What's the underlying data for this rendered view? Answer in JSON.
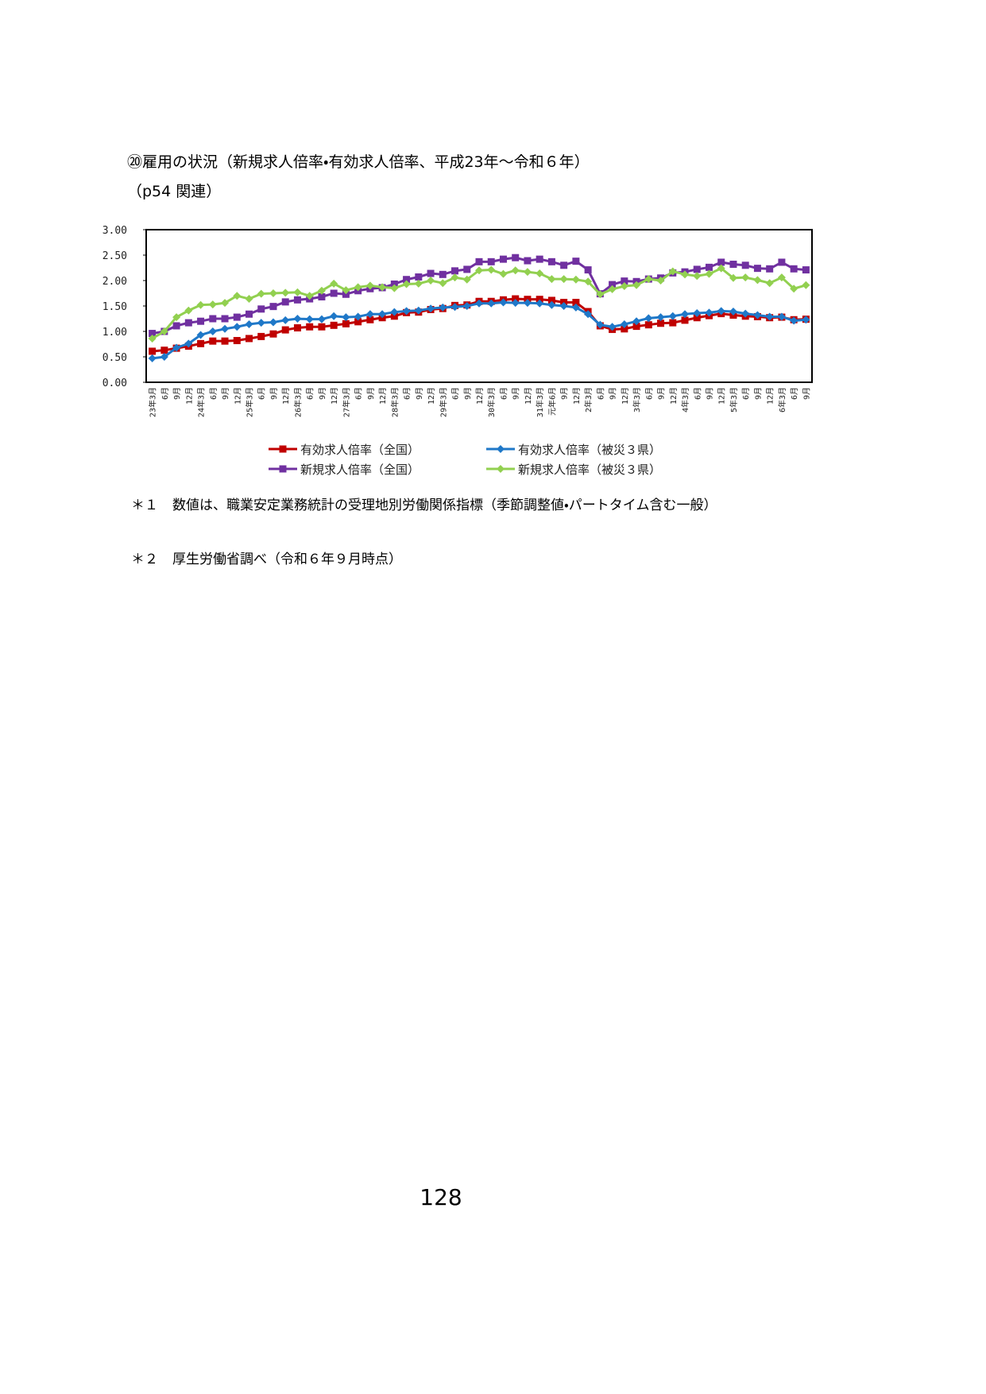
{
  "header": {
    "title": "⑳雇用の状況（新規求人倍率・有効求人倍率、平成23年〜令和６年）",
    "subtitle": "（p54 関連）"
  },
  "chart_data": {
    "type": "line",
    "categories": [
      "23年3月",
      "6月",
      "9月",
      "12月",
      "24年3月",
      "6月",
      "9月",
      "12月",
      "25年3月",
      "6月",
      "9月",
      "12月",
      "26年3月",
      "6月",
      "9月",
      "12月",
      "27年3月",
      "6月",
      "9月",
      "12月",
      "28年3月",
      "6月",
      "9月",
      "12月",
      "29年3月",
      "6月",
      "9月",
      "12月",
      "30年3月",
      "6月",
      "9月",
      "12月",
      "31年3月",
      "元年6月",
      "9月",
      "12月",
      "2年3月",
      "6月",
      "9月",
      "12月",
      "3年3月",
      "6月",
      "9月",
      "12月",
      "4年3月",
      "6月",
      "9月",
      "12月",
      "5年3月",
      "6月",
      "9月",
      "12月",
      "6年3月",
      "6月",
      "9月"
    ],
    "ylim": [
      0,
      3
    ],
    "yticks": [
      {
        "value": 0,
        "label": "0.00"
      },
      {
        "value": 0.5,
        "label": "0.50"
      },
      {
        "value": 1,
        "label": "1.00"
      },
      {
        "value": 1.5,
        "label": "1.50"
      },
      {
        "value": 2,
        "label": "2.00"
      },
      {
        "value": 2.5,
        "label": "2.50"
      },
      {
        "value": 3,
        "label": "3.00"
      }
    ],
    "grid": false,
    "series": [
      {
        "name": "有効求人倍率（全国）",
        "color": "#c00000",
        "marker": "square",
        "values": [
          0.61,
          0.63,
          0.67,
          0.71,
          0.76,
          0.81,
          0.81,
          0.82,
          0.86,
          0.9,
          0.95,
          1.03,
          1.07,
          1.09,
          1.09,
          1.12,
          1.15,
          1.19,
          1.23,
          1.27,
          1.3,
          1.37,
          1.38,
          1.43,
          1.45,
          1.51,
          1.52,
          1.59,
          1.59,
          1.62,
          1.64,
          1.63,
          1.63,
          1.61,
          1.57,
          1.57,
          1.39,
          1.11,
          1.04,
          1.05,
          1.1,
          1.13,
          1.16,
          1.17,
          1.22,
          1.27,
          1.31,
          1.35,
          1.32,
          1.3,
          1.29,
          1.27,
          1.28,
          1.23,
          1.24
        ]
      },
      {
        "name": "有効求人倍率（被災３県）",
        "color": "#1f78c8",
        "marker": "diamond",
        "values": [
          0.47,
          0.5,
          0.68,
          0.76,
          0.93,
          1.0,
          1.05,
          1.09,
          1.14,
          1.17,
          1.18,
          1.22,
          1.25,
          1.24,
          1.24,
          1.3,
          1.28,
          1.29,
          1.34,
          1.34,
          1.38,
          1.4,
          1.41,
          1.45,
          1.47,
          1.48,
          1.5,
          1.55,
          1.55,
          1.57,
          1.56,
          1.56,
          1.55,
          1.52,
          1.5,
          1.47,
          1.34,
          1.13,
          1.09,
          1.14,
          1.2,
          1.26,
          1.28,
          1.3,
          1.34,
          1.36,
          1.37,
          1.4,
          1.39,
          1.35,
          1.32,
          1.29,
          1.29,
          1.21,
          1.23
        ]
      },
      {
        "name": "新規求人倍率（全国）",
        "color": "#7030a0",
        "marker": "square",
        "values": [
          0.96,
          1.0,
          1.11,
          1.17,
          1.2,
          1.25,
          1.25,
          1.28,
          1.34,
          1.44,
          1.49,
          1.58,
          1.62,
          1.64,
          1.68,
          1.75,
          1.73,
          1.8,
          1.84,
          1.86,
          1.93,
          2.02,
          2.07,
          2.14,
          2.12,
          2.19,
          2.22,
          2.37,
          2.37,
          2.42,
          2.45,
          2.39,
          2.42,
          2.37,
          2.3,
          2.38,
          2.21,
          1.74,
          1.92,
          1.99,
          1.98,
          2.03,
          2.05,
          2.15,
          2.17,
          2.22,
          2.26,
          2.36,
          2.32,
          2.3,
          2.24,
          2.23,
          2.36,
          2.23,
          2.21
        ]
      },
      {
        "name": "新規求人倍率（被災３県）",
        "color": "#92d050",
        "marker": "diamond",
        "values": [
          0.86,
          1.0,
          1.28,
          1.41,
          1.52,
          1.53,
          1.56,
          1.7,
          1.64,
          1.74,
          1.75,
          1.76,
          1.77,
          1.7,
          1.8,
          1.94,
          1.81,
          1.87,
          1.9,
          1.87,
          1.85,
          1.93,
          1.94,
          2.0,
          1.95,
          2.06,
          2.02,
          2.2,
          2.21,
          2.13,
          2.2,
          2.17,
          2.14,
          2.03,
          2.03,
          2.02,
          1.98,
          1.73,
          1.83,
          1.89,
          1.91,
          2.03,
          2.0,
          2.18,
          2.12,
          2.09,
          2.13,
          2.24,
          2.05,
          2.06,
          2.01,
          1.95,
          2.06,
          1.84,
          1.91
        ]
      }
    ]
  },
  "notes": [
    {
      "marker": "＊１",
      "text": "数値は、職業安定業務統計の受理地別労働関係指標（季節調整値・パートタイム含む一般）"
    },
    {
      "marker": "＊２",
      "text": "厚生労働省調べ（令和６年９月時点）"
    }
  ],
  "footer": {
    "page": "128"
  }
}
